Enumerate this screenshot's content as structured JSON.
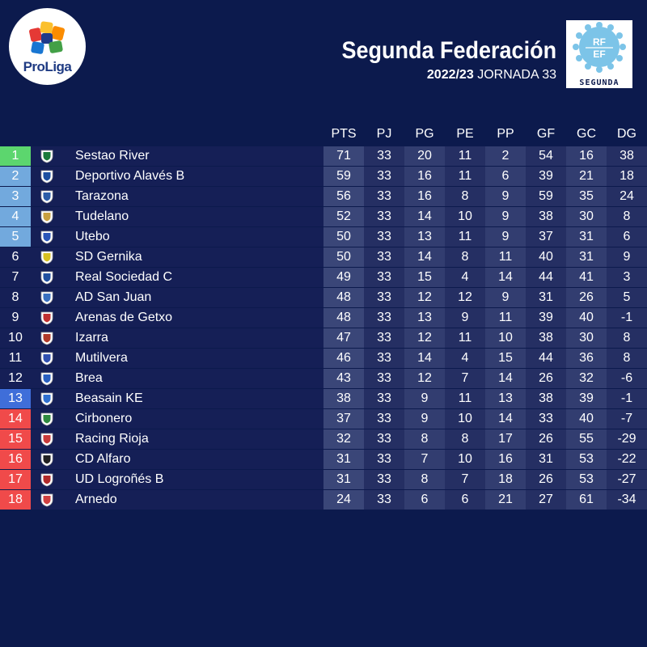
{
  "brand": {
    "logo_text": "ProLiga"
  },
  "header": {
    "title": "Segunda Federación",
    "season": "2022/23",
    "round": "JORNADA 33",
    "badge_text": "SEGUNDA",
    "badge_letters": [
      "R",
      "F",
      "E",
      "F"
    ]
  },
  "columns": [
    "PTS",
    "PJ",
    "PG",
    "PE",
    "PP",
    "GF",
    "GC",
    "DG"
  ],
  "zone_colors": {
    "promotion": "#5cd66e",
    "playoff": "#72a9dd",
    "playoff_dark": "#3f6ed9",
    "relegation": "#f04a4a",
    "none": "#151f56"
  },
  "rows": [
    {
      "pos": "1",
      "team": "Sestao River",
      "zone": "promotion",
      "crest": "#1a7a3a",
      "stats": [
        "71",
        "33",
        "20",
        "11",
        "2",
        "54",
        "16",
        "38"
      ]
    },
    {
      "pos": "2",
      "team": "Deportivo Alavés B",
      "zone": "playoff",
      "crest": "#1c4fa0",
      "stats": [
        "59",
        "33",
        "16",
        "11",
        "6",
        "39",
        "21",
        "18"
      ]
    },
    {
      "pos": "3",
      "team": "Tarazona",
      "zone": "playoff",
      "crest": "#2b5da8",
      "stats": [
        "56",
        "33",
        "16",
        "8",
        "9",
        "59",
        "35",
        "24"
      ]
    },
    {
      "pos": "4",
      "team": "Tudelano",
      "zone": "playoff",
      "crest": "#c8a040",
      "stats": [
        "52",
        "33",
        "14",
        "10",
        "9",
        "38",
        "30",
        "8"
      ]
    },
    {
      "pos": "5",
      "team": "Utebo",
      "zone": "playoff",
      "crest": "#2a56b8",
      "stats": [
        "50",
        "33",
        "13",
        "11",
        "9",
        "37",
        "31",
        "6"
      ]
    },
    {
      "pos": "6",
      "team": "SD Gernika",
      "zone": "none",
      "crest": "#d8c020",
      "stats": [
        "50",
        "33",
        "14",
        "8",
        "11",
        "40",
        "31",
        "9"
      ]
    },
    {
      "pos": "7",
      "team": "Real Sociedad C",
      "zone": "none",
      "crest": "#2050a0",
      "stats": [
        "49",
        "33",
        "15",
        "4",
        "14",
        "44",
        "41",
        "3"
      ]
    },
    {
      "pos": "8",
      "team": "AD San Juan",
      "zone": "none",
      "crest": "#3a70c0",
      "stats": [
        "48",
        "33",
        "12",
        "12",
        "9",
        "31",
        "26",
        "5"
      ]
    },
    {
      "pos": "9",
      "team": "Arenas de Getxo",
      "zone": "none",
      "crest": "#c03030",
      "stats": [
        "48",
        "33",
        "13",
        "9",
        "11",
        "39",
        "40",
        "-1"
      ]
    },
    {
      "pos": "10",
      "team": "Izarra",
      "zone": "none",
      "crest": "#b03a2a",
      "stats": [
        "47",
        "33",
        "12",
        "11",
        "10",
        "38",
        "30",
        "8"
      ]
    },
    {
      "pos": "11",
      "team": "Mutilvera",
      "zone": "none",
      "crest": "#3050b0",
      "stats": [
        "46",
        "33",
        "14",
        "4",
        "15",
        "44",
        "36",
        "8"
      ]
    },
    {
      "pos": "12",
      "team": "Brea",
      "zone": "none",
      "crest": "#2a60c0",
      "stats": [
        "43",
        "33",
        "12",
        "7",
        "14",
        "26",
        "32",
        "-6"
      ]
    },
    {
      "pos": "13",
      "team": "Beasain KE",
      "zone": "playoff_dark",
      "crest": "#3070d0",
      "stats": [
        "38",
        "33",
        "9",
        "11",
        "13",
        "38",
        "39",
        "-1"
      ]
    },
    {
      "pos": "14",
      "team": "Cirbonero",
      "zone": "relegation",
      "crest": "#2f8a40",
      "stats": [
        "37",
        "33",
        "9",
        "10",
        "14",
        "33",
        "40",
        "-7"
      ]
    },
    {
      "pos": "15",
      "team": "Racing Rioja",
      "zone": "relegation",
      "crest": "#c83a3a",
      "stats": [
        "32",
        "33",
        "8",
        "8",
        "17",
        "26",
        "55",
        "-29"
      ]
    },
    {
      "pos": "16",
      "team": "CD Alfaro",
      "zone": "relegation",
      "crest": "#222222",
      "stats": [
        "31",
        "33",
        "7",
        "10",
        "16",
        "31",
        "53",
        "-22"
      ]
    },
    {
      "pos": "17",
      "team": "UD Logroñés B",
      "zone": "relegation",
      "crest": "#b02a2a",
      "stats": [
        "31",
        "33",
        "8",
        "7",
        "18",
        "26",
        "53",
        "-27"
      ]
    },
    {
      "pos": "18",
      "team": "Arnedo",
      "zone": "relegation",
      "crest": "#d04040",
      "stats": [
        "24",
        "33",
        "6",
        "6",
        "21",
        "27",
        "61",
        "-34"
      ]
    }
  ]
}
